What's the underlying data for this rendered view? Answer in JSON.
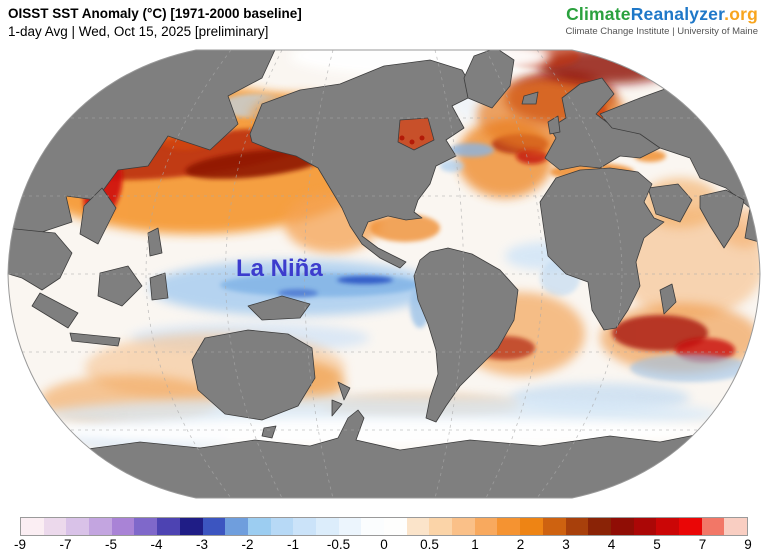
{
  "header": {
    "title": "OISST SST Anomaly (°C) [1971-2000 baseline]",
    "subtitle": "1-day Avg | Wed, Oct 15, 2025 [preliminary]"
  },
  "brand": {
    "climate": "Climate",
    "reanalyzer": "Reanalyzer",
    "org": ".org",
    "tagline": "Climate Change Institute | University of Maine",
    "colors": {
      "climate": "#2aa13e",
      "reanalyzer": "#1f78c8",
      "org": "#f8a51e",
      "tagline": "#555555"
    }
  },
  "map": {
    "annotation": "La Niña",
    "annotation_color": "#3c3ccd",
    "land_color": "#7f7f7f",
    "land_border_color": "#3d3d3d",
    "ice_color": "#ffffff",
    "graticule_color": "#aaaaaa",
    "outline_color": "#999999"
  },
  "colorbar": {
    "ticks": [
      "-9",
      "-7",
      "-5",
      "-4",
      "-3",
      "-2",
      "-1",
      "-0.5",
      "0",
      "0.5",
      "1",
      "2",
      "3",
      "4",
      "5",
      "7",
      "9"
    ],
    "segments": [
      "#fbeef3",
      "#ecd9ec",
      "#d9c2e8",
      "#c3a5e0",
      "#a983d6",
      "#7f68ca",
      "#4d43b2",
      "#1f1d86",
      "#3c55c0",
      "#6f9edd",
      "#9ccdf1",
      "#b7d9f6",
      "#cbe3f9",
      "#dcedfb",
      "#ecf5fd",
      "#fbfdfe",
      "#fefefd",
      "#fbe4ca",
      "#fbd4a8",
      "#fac088",
      "#f8a95e",
      "#f59331",
      "#ee8414",
      "#ce6210",
      "#a8400b",
      "#8a2306",
      "#900d05",
      "#ab0706",
      "#cb0606",
      "#ea0606",
      "#f27767",
      "#f9cec2"
    ]
  }
}
